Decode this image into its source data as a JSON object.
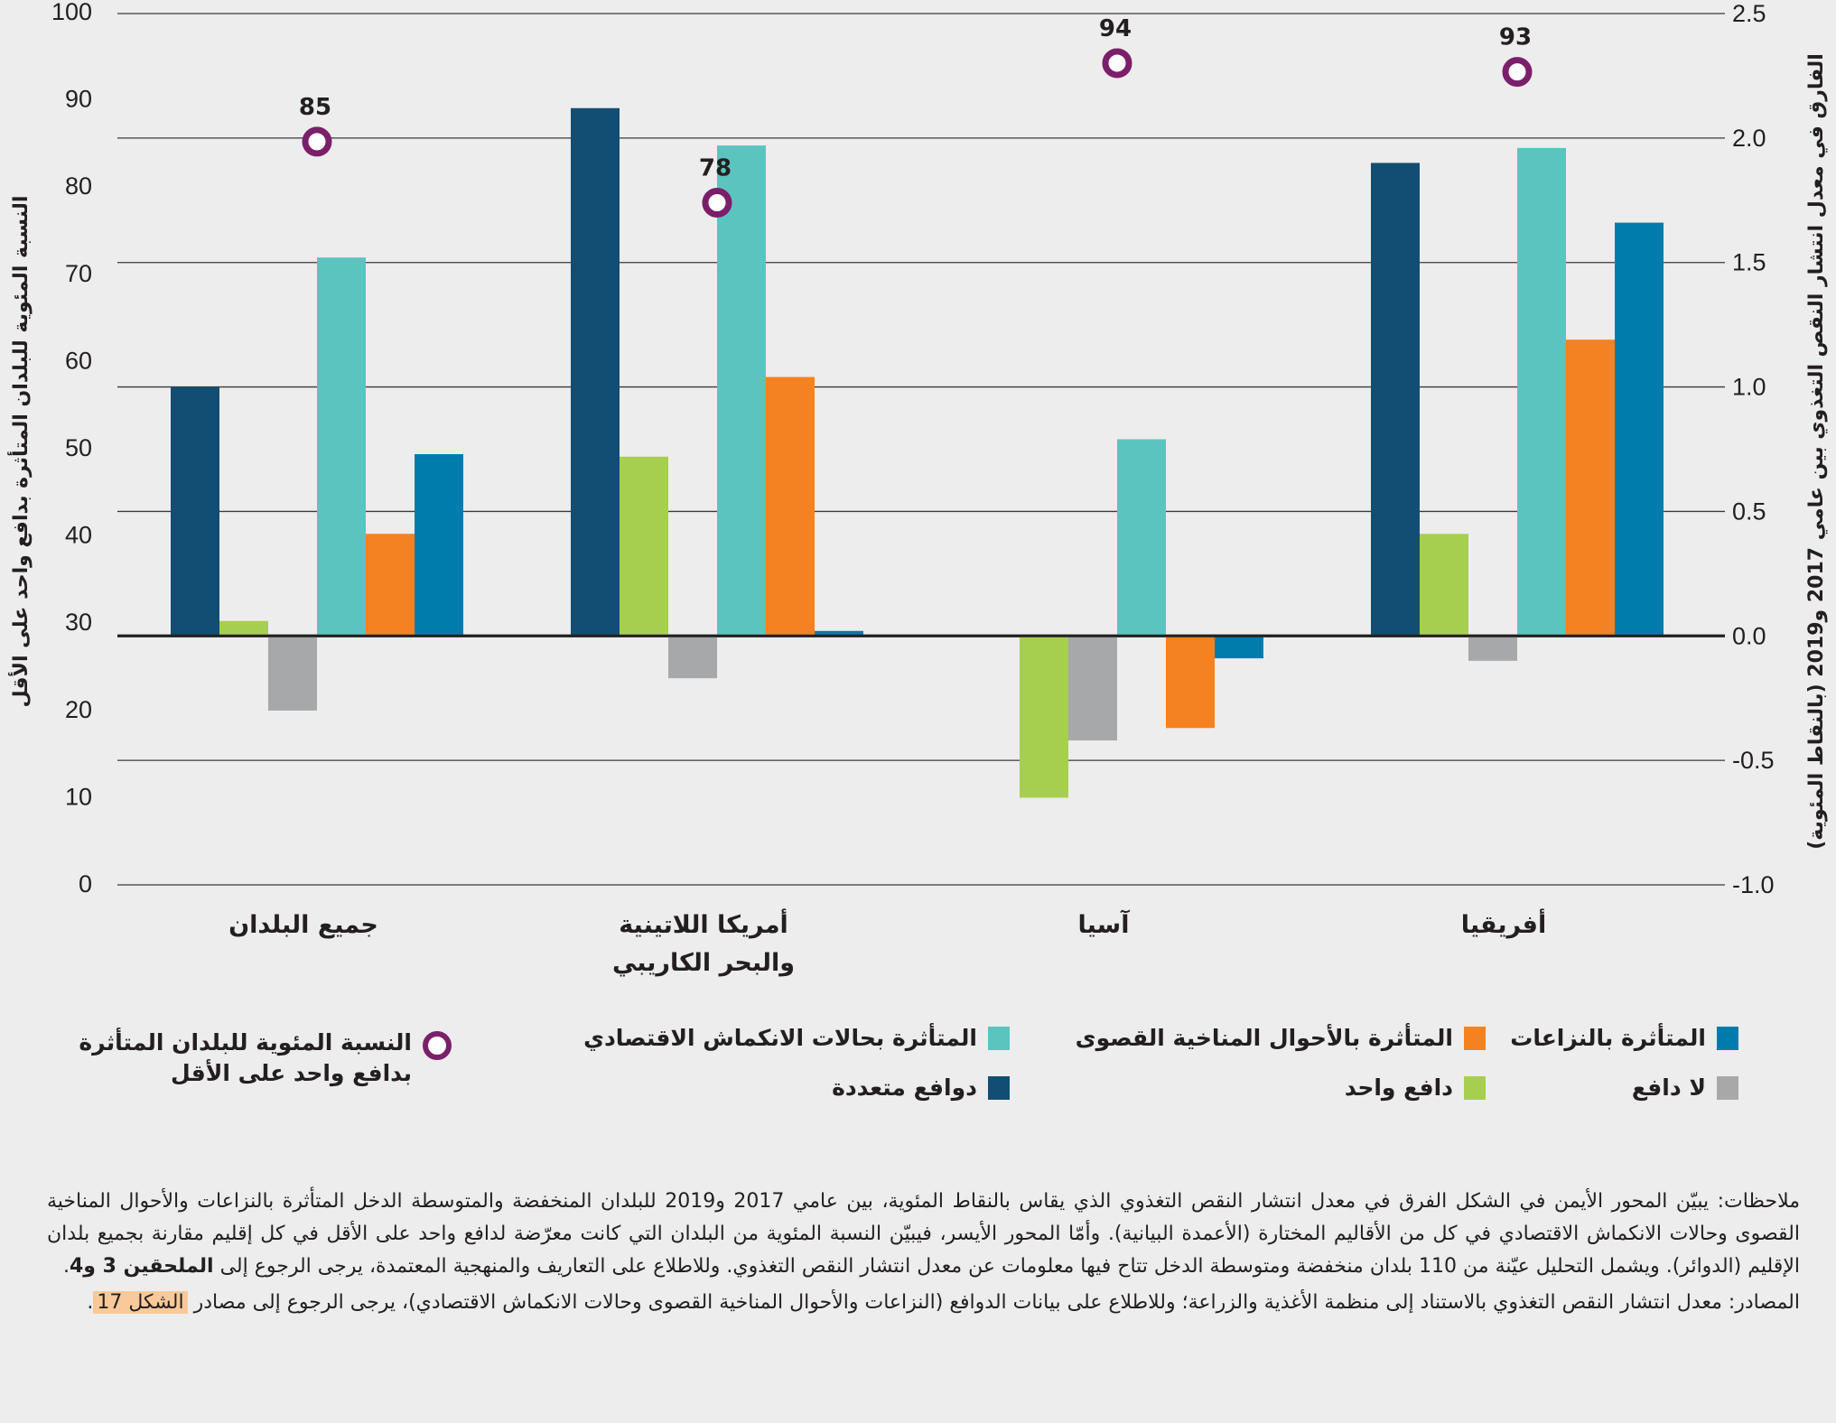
{
  "chart_data": {
    "type": "bar",
    "categories": [
      "جميع البلدان",
      "أمريكا اللاتينية والبحر الكاريبي",
      "آسيا",
      "أفريقيا"
    ],
    "category_lines": [
      [
        "جميع البلدان"
      ],
      [
        "أمريكا اللاتينية",
        "والبحر الكاريبي"
      ],
      [
        "آسيا"
      ],
      [
        "أفريقيا"
      ]
    ],
    "series": [
      {
        "key": "multiple",
        "name": "دوافع متعددة",
        "color": "#124e74",
        "values": [
          1.0,
          2.12,
          0.0,
          1.9
        ]
      },
      {
        "key": "one",
        "name": "دافع واحد",
        "color": "#a7cf4f",
        "values": [
          0.06,
          0.72,
          -0.65,
          0.41
        ]
      },
      {
        "key": "none",
        "name": "لا دافع",
        "color": "#a7a8aa",
        "values": [
          -0.3,
          -0.17,
          -0.42,
          -0.1
        ]
      },
      {
        "key": "economic",
        "name": "المتأثرة بحالات الانكماش الاقتصادي",
        "color": "#5cc4bf",
        "values": [
          1.52,
          1.97,
          0.79,
          1.96
        ]
      },
      {
        "key": "climate",
        "name": "المتأثرة بالأحوال المناخية القصوى",
        "color": "#f58220",
        "values": [
          0.41,
          1.04,
          -0.37,
          1.19
        ]
      },
      {
        "key": "conflict",
        "name": "المتأثرة بالنزاعات",
        "color": "#007cac",
        "values": [
          0.73,
          0.02,
          -0.09,
          1.66
        ]
      }
    ],
    "points": {
      "name": "النسبة المئوية للبلدان المتأثرة بدافع واحد على الأقل",
      "color": "#7b1f6a",
      "values": [
        85,
        78,
        94,
        93
      ],
      "labels": [
        "85",
        "78",
        "94",
        "93"
      ],
      "axis": "left"
    },
    "left_axis": {
      "label": "النسبة المئوية للبلدان المتأثرة بدافع واحد على الأقل",
      "ylim": [
        0,
        100
      ],
      "ticks": [
        "0",
        "10",
        "20",
        "30",
        "40",
        "50",
        "60",
        "70",
        "80",
        "90",
        "100"
      ]
    },
    "right_axis": {
      "label": "الفارق في معدل انتشار النقص التغذوي بين عامي 2017 و2019 (بالنقاط المئوية)",
      "ylim": [
        -1.0,
        2.5
      ],
      "ticks": [
        "-1.0",
        "-0.5",
        "0.0",
        "0.5",
        "1.0",
        "1.5",
        "2.0",
        "2.5"
      ]
    },
    "grid": true,
    "legend_position": "bottom"
  },
  "legend": {
    "conflict": "المتأثرة بالنزاعات",
    "climate": "المتأثرة بالأحوال المناخية القصوى",
    "economic": "المتأثرة بحالات الانكماش الاقتصادي",
    "none": "لا دافع",
    "one": "دافع واحد",
    "multiple": "دوافع متعددة",
    "ring_line1": "النسبة المئوية للبلدان المتأثرة",
    "ring_line2": "بدافع واحد على الأقل"
  },
  "notes": {
    "notes_text": "ملاحظات: يبيّن المحور الأيمن في الشكل الفرق في معدل انتشار النقص التغذوي الذي يقاس بالنقاط المئوية، بين عامي 2017 و2019 للبلدان المنخفضة والمتوسطة الدخل المتأثرة بالنزاعات والأحوال المناخية القصوى وحالات الانكماش الاقتصادي في كل من الأقاليم المختارة (الأعمدة البيانية). وأمّا المحور الأيسر، فيبيّن النسبة المئوية من البلدان التي كانت معرّضة لدافع واحد على الأقل في كل إقليم مقارنة بجميع بلدان الإقليم (الدوائر). ويشمل التحليل عيّنة من 110 بلدان منخفضة ومتوسطة الدخل تتاح فيها معلومات عن معدل انتشار النقص التغذوي. وللاطلاع على التعاريف والمنهجية المعتمدة، يرجى الرجوع إلى",
    "notes_bold": "الملحقين 3 و4",
    "notes_end": ".",
    "sources_text": "المصادر: معدل انتشار النقص التغذوي بالاستناد إلى منظمة الأغذية والزراعة؛ وللاطلاع على بيانات الدوافع (النزاعات والأحوال المناخية القصوى وحالات الانكماش الاقتصادي)، يرجى الرجوع إلى مصادر",
    "sources_link": "الشكل 17",
    "sources_end": "."
  }
}
